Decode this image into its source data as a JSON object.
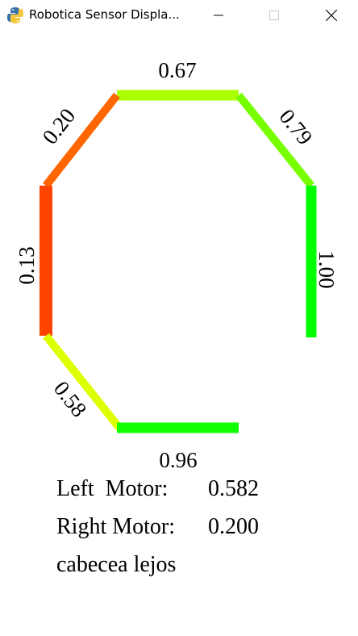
{
  "window": {
    "title": "Robotica Sensor Displa...",
    "icon": "python-icon"
  },
  "sensors": [
    {
      "id": "top",
      "value": "0.67",
      "color": "#aaff00"
    },
    {
      "id": "top-right",
      "value": "0.79",
      "color": "#77ff00"
    },
    {
      "id": "right",
      "value": "1.00",
      "color": "#00ff00"
    },
    {
      "id": "top-left",
      "value": "0.20",
      "color": "#ff6600"
    },
    {
      "id": "left",
      "value": "0.13",
      "color": "#ff4400"
    },
    {
      "id": "bottom-left",
      "value": "0.58",
      "color": "#ddff00"
    },
    {
      "id": "bottom",
      "value": "0.96",
      "color": "#11ff00"
    }
  ],
  "status": {
    "left_motor_label": "Left  Motor:",
    "left_motor_value": "0.582",
    "right_motor_label": "Right Motor:",
    "right_motor_value": "0.200",
    "message": "cabecea lejos"
  }
}
